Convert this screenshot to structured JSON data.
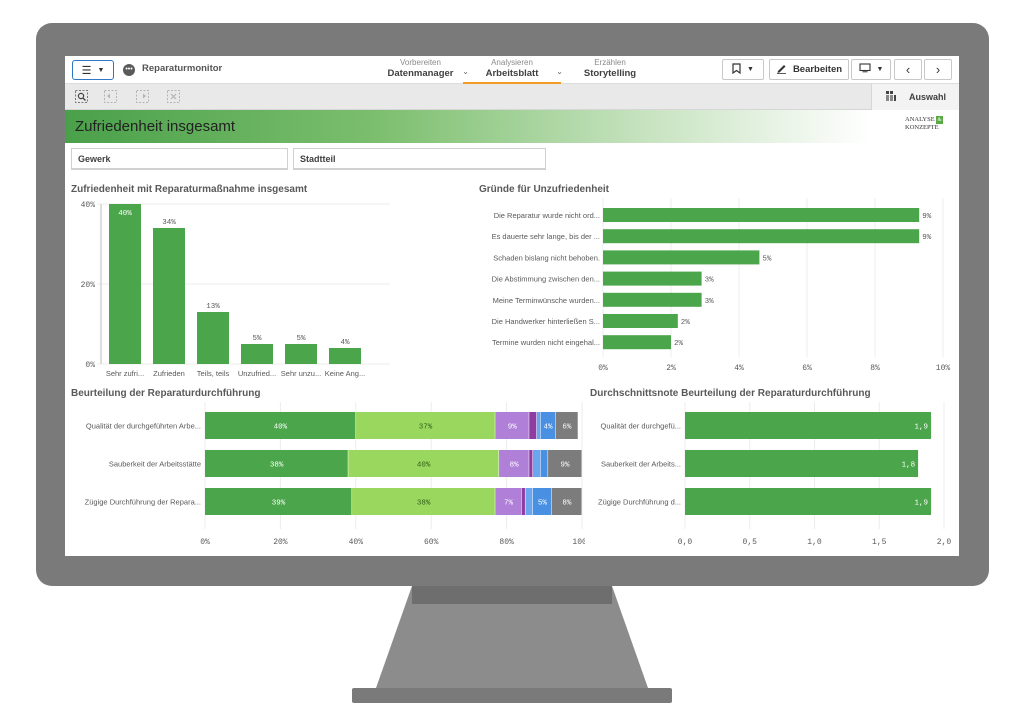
{
  "app": {
    "title": "Reparaturmonitor"
  },
  "nav": {
    "tabs": [
      {
        "sub": "Vorbereiten",
        "label": "Datenmanager"
      },
      {
        "sub": "Analysieren",
        "label": "Arbeitsblatt"
      },
      {
        "sub": "Erzählen",
        "label": "Storytelling"
      }
    ],
    "edit_label": "Bearbeiten",
    "selection_label": "Auswahl"
  },
  "sheet": {
    "title": "Zufriedenheit insgesamt",
    "logo_line1": "ANALYSE",
    "logo_amp": "&",
    "logo_line2": "KONZEPTE"
  },
  "filters": [
    {
      "label": "Gewerk"
    },
    {
      "label": "Stadtteil"
    }
  ],
  "colors": {
    "green": "#4ba54b",
    "light_green": "#99d75e",
    "purple": "#b07fd8",
    "dark_purple": "#8f3da1",
    "blue": "#4a90e2",
    "light_blue": "#6aa6f0",
    "gray": "#7c7c7c",
    "accent": "#f29c2b"
  },
  "chart_data": [
    {
      "id": "zufriedenheit",
      "type": "bar",
      "title": "Zufriedenheit mit Reparaturmaßnahme insgesamt",
      "categories": [
        "Sehr zufri...",
        "Zufrieden",
        "Teils, teils",
        "Unzufried...",
        "Sehr unzu...",
        "Keine Ang..."
      ],
      "values": [
        40,
        34,
        13,
        5,
        5,
        4
      ],
      "labels": [
        "40%",
        "34%",
        "13%",
        "5%",
        "5%",
        "4%"
      ],
      "yticks": [
        "0%",
        "20%",
        "40%"
      ],
      "ylim": [
        0,
        40
      ]
    },
    {
      "id": "gruende",
      "type": "bar",
      "orientation": "horizontal",
      "title": "Gründe für Unzufriedenheit",
      "categories": [
        "Die Reparatur wurde nicht ord...",
        "Es dauerte sehr lange, bis der ...",
        "Schaden bislang nicht behoben.",
        "Die Abstimmung zwischen den...",
        "Meine Terminwünsche wurden...",
        "Die Handwerker hinterließen S...",
        "Termine wurden nicht eingehal..."
      ],
      "values": [
        9.3,
        9.3,
        4.6,
        2.9,
        2.9,
        2.2,
        2.0
      ],
      "labels": [
        "9%",
        "9%",
        "5%",
        "3%",
        "3%",
        "2%",
        "2%"
      ],
      "xticks": [
        "0%",
        "2%",
        "4%",
        "6%",
        "8%",
        "10%"
      ],
      "xlim": [
        0,
        10
      ]
    },
    {
      "id": "beurteilung",
      "type": "bar",
      "orientation": "horizontal",
      "stacked": true,
      "title": "Beurteilung der Reparaturdurchführung",
      "categories": [
        "Qualität der durchgeführten Arbe...",
        "Sauberkeit der Arbeitsstätte",
        "Zügige Durchführung der Repara..."
      ],
      "series": [
        {
          "values": [
            40,
            38,
            39
          ],
          "labels": [
            "40%",
            "38%",
            "39%"
          ],
          "color": "#4ba54b",
          "text_color": "#ffffff"
        },
        {
          "values": [
            37,
            40,
            38
          ],
          "labels": [
            "37%",
            "40%",
            "38%"
          ],
          "color": "#99d75e",
          "text_color": "#2f5e17"
        },
        {
          "values": [
            9,
            8,
            7
          ],
          "labels": [
            "9%",
            "8%",
            "7%"
          ],
          "color": "#b07fd8",
          "text_color": "#ffffff"
        },
        {
          "values": [
            2,
            1,
            1
          ],
          "labels": [
            "",
            "",
            ""
          ],
          "color": "#8f3da1",
          "text_color": "#ffffff"
        },
        {
          "values": [
            1,
            2,
            2
          ],
          "labels": [
            "",
            "",
            ""
          ],
          "color": "#6aa6f0",
          "text_color": "#ffffff"
        },
        {
          "values": [
            4,
            2,
            5
          ],
          "labels": [
            "4%",
            "",
            "5%"
          ],
          "color": "#4a90e2",
          "text_color": "#ffffff"
        },
        {
          "values": [
            6,
            9,
            8
          ],
          "labels": [
            "6%",
            "9%",
            "8%"
          ],
          "color": "#7c7c7c",
          "text_color": "#ffffff"
        }
      ],
      "xticks": [
        "0%",
        "20%",
        "40%",
        "60%",
        "80%",
        "100%"
      ],
      "xlim": [
        0,
        100
      ]
    },
    {
      "id": "durchschnitt",
      "type": "bar",
      "orientation": "horizontal",
      "title": "Durchschnittsnote Beurteilung der Reparaturdurchführung",
      "categories": [
        "Qualität der durchgefü...",
        "Sauberkeit der Arbeits...",
        "Zügige Durchführung d..."
      ],
      "values": [
        1.9,
        1.8,
        1.9
      ],
      "labels": [
        "1,9",
        "1,8",
        "1,9"
      ],
      "xticks": [
        "0,0",
        "0,5",
        "1,0",
        "1,5",
        "2,0"
      ],
      "xlim": [
        0,
        2
      ]
    }
  ]
}
